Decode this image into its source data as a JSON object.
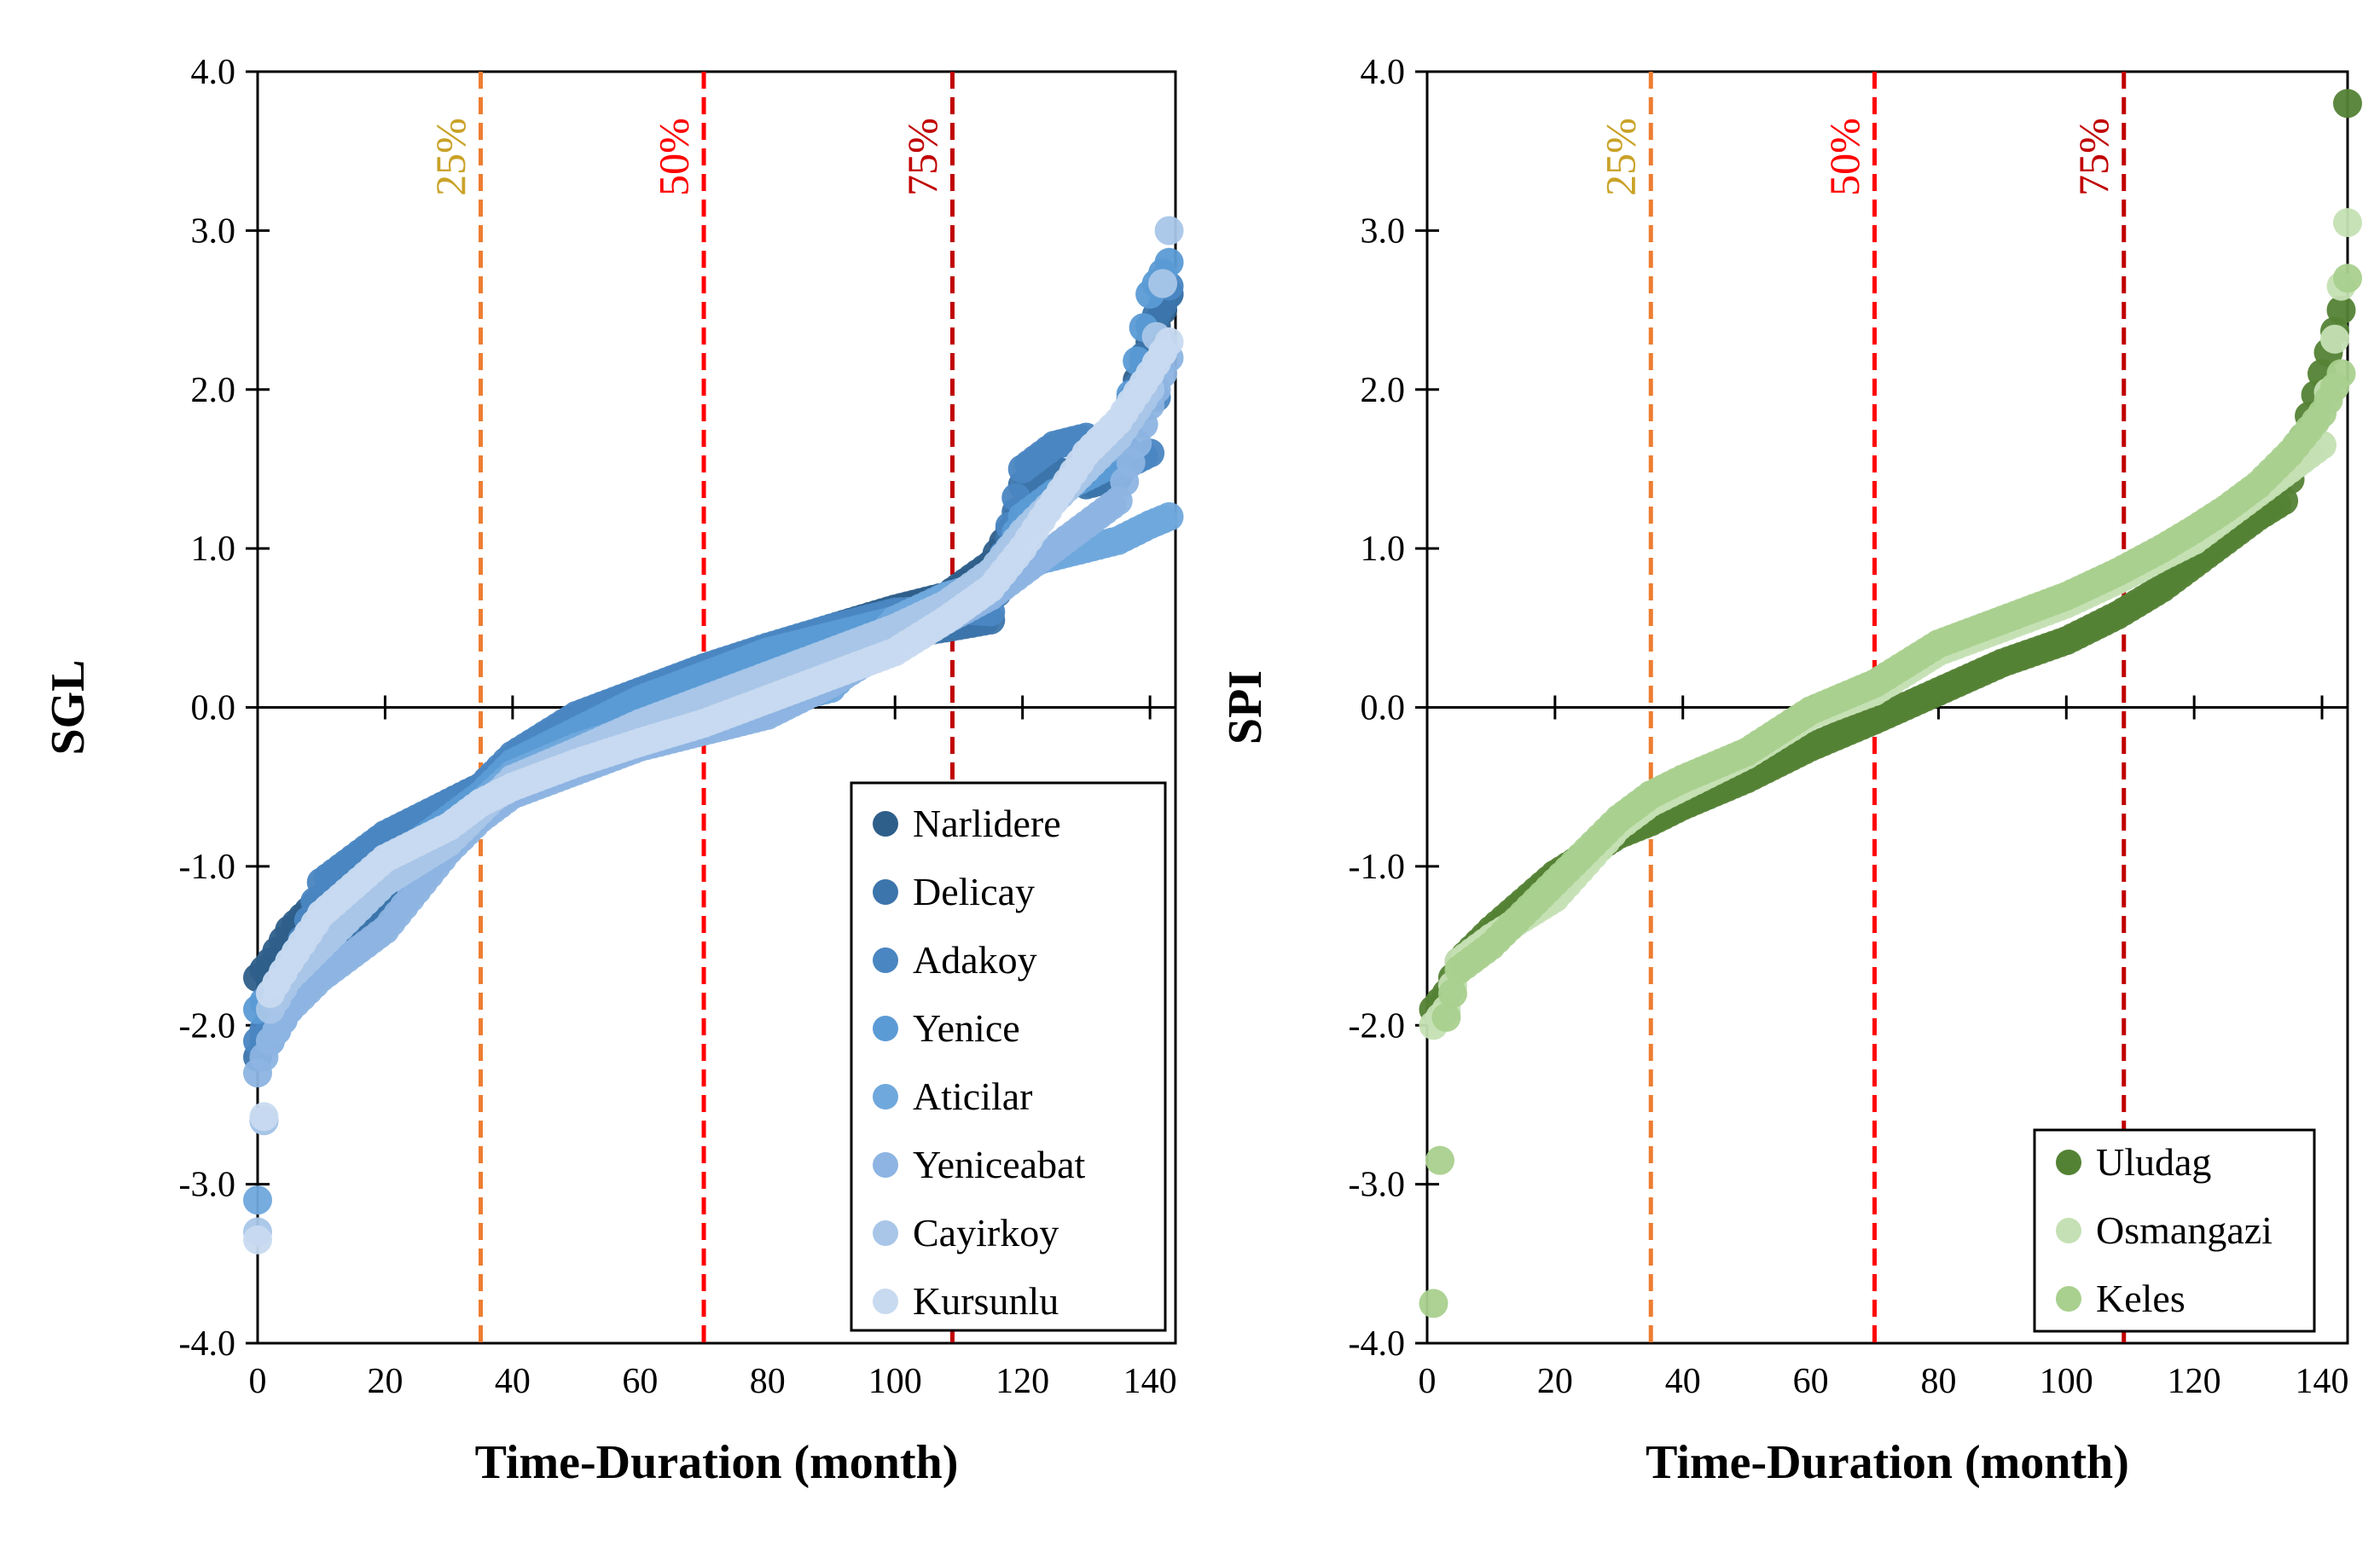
{
  "chart_data": [
    {
      "type": "scatter",
      "xlabel": "Time-Duration (month)",
      "ylabel": "SGL",
      "xlim": [
        0,
        144
      ],
      "ylim": [
        -4.0,
        4.0
      ],
      "x_ticks": [
        0,
        20,
        40,
        60,
        80,
        100,
        120,
        140
      ],
      "y_ticks": [
        -4.0,
        -3.0,
        -2.0,
        -1.0,
        0.0,
        1.0,
        2.0,
        3.0,
        4.0
      ],
      "x_tick_labels": [
        "0",
        "20",
        "40",
        "60",
        "80",
        "100",
        "120",
        "140"
      ],
      "y_tick_labels": [
        "-4.0",
        "-3.0",
        "-2.0",
        "-1.0",
        "0.0",
        "1.0",
        "2.0",
        "3.0",
        "4.0"
      ],
      "legend_position": "lower-right",
      "percentile_lines": [
        {
          "label": "25%",
          "x": 35,
          "color": "#ED7D31",
          "label_color": "#C9A227"
        },
        {
          "label": "50%",
          "x": 70,
          "color": "#FF0000",
          "label_color": "#FF0000"
        },
        {
          "label": "75%",
          "x": 109,
          "color": "#C00000",
          "label_color": "#C00000"
        }
      ],
      "series": [
        {
          "name": "Narlidere",
          "color": "#2E5F8A",
          "x": [
            0,
            2,
            5,
            10,
            20,
            30,
            35,
            40,
            50,
            60,
            70,
            80,
            90,
            100,
            108,
            115,
            120,
            125,
            130,
            135,
            140,
            143
          ],
          "y": [
            -1.7,
            -1.6,
            -1.4,
            -1.2,
            -0.85,
            -0.6,
            -0.5,
            -0.35,
            -0.12,
            0.05,
            0.2,
            0.35,
            0.5,
            0.62,
            0.7,
            0.9,
            1.25,
            1.4,
            1.55,
            1.7,
            2.3,
            2.6
          ]
        },
        {
          "name": "Delicay",
          "color": "#3C75AB",
          "x": [
            0,
            2,
            5,
            10,
            20,
            30,
            35,
            40,
            50,
            60,
            70,
            80,
            90,
            100,
            108,
            115,
            120,
            125,
            130,
            135,
            140,
            143
          ],
          "y": [
            -2.2,
            -2.0,
            -1.8,
            -1.6,
            -1.2,
            -0.85,
            -0.6,
            -0.4,
            -0.18,
            -0.02,
            0.12,
            0.28,
            0.38,
            0.45,
            0.5,
            0.55,
            1.4,
            1.5,
            1.4,
            1.45,
            2.4,
            2.6
          ]
        },
        {
          "name": "Adakoy",
          "color": "#4A86C2",
          "x": [
            0,
            2,
            5,
            10,
            20,
            30,
            35,
            40,
            50,
            60,
            70,
            80,
            90,
            100,
            108,
            115,
            120,
            125,
            130,
            135,
            140,
            143
          ],
          "y": [
            -2.1,
            -1.95,
            -1.7,
            -1.1,
            -0.8,
            -0.6,
            -0.5,
            -0.3,
            -0.05,
            0.1,
            0.25,
            0.38,
            0.5,
            0.6,
            0.62,
            0.6,
            1.5,
            1.65,
            1.7,
            1.5,
            1.6,
            2.65
          ]
        },
        {
          "name": "Yenice",
          "color": "#5B9BD5",
          "x": [
            0,
            2,
            5,
            10,
            20,
            30,
            35,
            40,
            50,
            60,
            70,
            80,
            90,
            100,
            108,
            115,
            120,
            125,
            130,
            135,
            140,
            143
          ],
          "y": [
            -1.9,
            -1.8,
            -1.6,
            -1.3,
            -1.0,
            -0.7,
            -0.55,
            -0.35,
            -0.15,
            0.05,
            0.2,
            0.35,
            0.45,
            0.55,
            0.62,
            0.7,
            1.2,
            1.35,
            1.45,
            1.55,
            2.6,
            2.8
          ]
        },
        {
          "name": "Aticilar",
          "color": "#6FA8DC",
          "x": [
            0,
            2,
            5,
            10,
            20,
            30,
            35,
            40,
            50,
            60,
            70,
            80,
            90,
            100,
            108,
            115,
            120,
            125,
            130,
            135,
            140,
            143
          ],
          "y": [
            -3.1,
            -2.1,
            -1.9,
            -1.5,
            -1.1,
            -0.8,
            -0.6,
            -0.42,
            -0.25,
            -0.12,
            -0.05,
            0.02,
            0.12,
            0.55,
            0.7,
            0.78,
            0.9,
            0.95,
            1.0,
            1.05,
            1.15,
            1.2
          ]
        },
        {
          "name": "Yeniceabat",
          "color": "#8DB4E2",
          "x": [
            0,
            2,
            5,
            10,
            20,
            30,
            35,
            40,
            50,
            60,
            70,
            80,
            90,
            100,
            108,
            115,
            120,
            125,
            130,
            135,
            140,
            143
          ],
          "y": [
            -2.3,
            -2.1,
            -1.9,
            -1.7,
            -1.4,
            -0.9,
            -0.7,
            -0.55,
            -0.4,
            -0.25,
            -0.15,
            -0.05,
            0.15,
            0.4,
            0.55,
            0.7,
            0.85,
            1.0,
            1.15,
            1.3,
            1.9,
            2.2
          ]
        },
        {
          "name": "Cayirkoy",
          "color": "#A9C6E8",
          "x": [
            0,
            2,
            5,
            10,
            20,
            30,
            35,
            40,
            50,
            60,
            70,
            80,
            90,
            100,
            108,
            115,
            120,
            125,
            130,
            135,
            140,
            143
          ],
          "y": [
            -3.3,
            -1.9,
            -1.7,
            -1.5,
            -1.1,
            -0.85,
            -0.65,
            -0.45,
            -0.28,
            -0.1,
            0.05,
            0.2,
            0.35,
            0.5,
            0.65,
            0.85,
            1.1,
            1.3,
            1.5,
            1.7,
            2.0,
            3.0
          ]
        },
        {
          "name": "Kursunlu",
          "color": "#C8DAF0",
          "x": [
            0,
            2,
            5,
            10,
            20,
            30,
            35,
            40,
            50,
            60,
            70,
            80,
            90,
            100,
            108,
            115,
            120,
            125,
            130,
            135,
            140,
            143
          ],
          "y": [
            -3.35,
            -1.8,
            -1.6,
            -1.3,
            -0.95,
            -0.75,
            -0.6,
            -0.5,
            -0.35,
            -0.22,
            -0.1,
            0.05,
            0.2,
            0.35,
            0.55,
            0.75,
            1.0,
            1.3,
            1.6,
            1.8,
            2.1,
            2.3
          ]
        }
      ]
    },
    {
      "type": "scatter",
      "xlabel": "Time-Duration (month)",
      "ylabel": "SPI",
      "xlim": [
        0,
        144
      ],
      "ylim": [
        -4.0,
        4.0
      ],
      "x_ticks": [
        0,
        20,
        40,
        60,
        80,
        100,
        120,
        140
      ],
      "y_ticks": [
        -4.0,
        -3.0,
        -2.0,
        -1.0,
        0.0,
        1.0,
        2.0,
        3.0,
        4.0
      ],
      "x_tick_labels": [
        "0",
        "20",
        "40",
        "60",
        "80",
        "100",
        "120",
        "140"
      ],
      "y_tick_labels": [
        "-4.0",
        "-3.0",
        "-2.0",
        "-1.0",
        "0.0",
        "1.0",
        "2.0",
        "3.0",
        "4.0"
      ],
      "legend_position": "lower-right",
      "percentile_lines": [
        {
          "label": "25%",
          "x": 35,
          "color": "#ED7D31",
          "label_color": "#C9A227"
        },
        {
          "label": "50%",
          "x": 70,
          "color": "#FF0000",
          "label_color": "#FF0000"
        },
        {
          "label": "75%",
          "x": 109,
          "color": "#C00000",
          "label_color": "#C00000"
        }
      ],
      "series": [
        {
          "name": "Uludag",
          "color": "#548235",
          "x": [
            1,
            3,
            5,
            10,
            20,
            30,
            35,
            40,
            50,
            60,
            70,
            80,
            90,
            100,
            108,
            115,
            120,
            125,
            130,
            134,
            140,
            143,
            144
          ],
          "y": [
            -1.9,
            -1.8,
            -1.6,
            -1.4,
            -1.05,
            -0.8,
            -0.72,
            -0.62,
            -0.45,
            -0.25,
            -0.08,
            0.1,
            0.28,
            0.42,
            0.58,
            0.75,
            0.9,
            1.05,
            1.2,
            1.3,
            2.1,
            2.5,
            3.8
          ]
        },
        {
          "name": "Osmangazi",
          "color": "#C5E0B4",
          "x": [
            1,
            3,
            5,
            10,
            20,
            30,
            35,
            40,
            50,
            60,
            70,
            80,
            90,
            100,
            108,
            115,
            120,
            125,
            130,
            135,
            140,
            143,
            144
          ],
          "y": [
            -2.0,
            -1.9,
            -1.6,
            -1.45,
            -1.2,
            -0.75,
            -0.6,
            -0.5,
            -0.3,
            -0.05,
            0.1,
            0.35,
            0.5,
            0.65,
            0.8,
            0.95,
            1.05,
            1.2,
            1.35,
            1.5,
            1.65,
            2.65,
            3.05
          ]
        },
        {
          "name": "Keles",
          "color": "#A9D08E",
          "x": [
            1,
            3,
            5,
            10,
            20,
            30,
            35,
            40,
            50,
            60,
            70,
            80,
            90,
            100,
            108,
            115,
            120,
            125,
            130,
            135,
            140,
            143,
            144
          ],
          "y": [
            -3.75,
            -1.95,
            -1.65,
            -1.5,
            -1.1,
            -0.7,
            -0.55,
            -0.45,
            -0.28,
            -0.02,
            0.15,
            0.4,
            0.55,
            0.7,
            0.85,
            1.0,
            1.12,
            1.25,
            1.4,
            1.6,
            1.85,
            2.1,
            2.7
          ]
        }
      ]
    }
  ]
}
